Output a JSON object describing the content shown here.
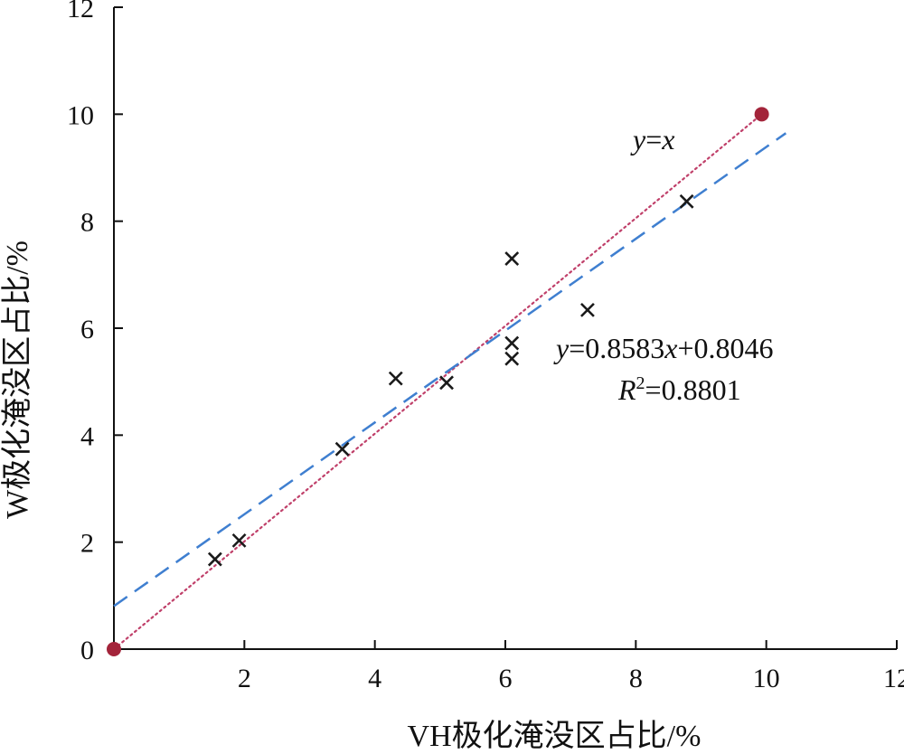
{
  "chart_data": {
    "type": "scatter",
    "xlabel": "VH极化淹没区占比/%",
    "ylabel": "W极化淹没区占比/%",
    "xlim": [
      0,
      12
    ],
    "ylim": [
      0,
      12
    ],
    "x_ticks": [
      "2",
      "4",
      "6",
      "8",
      "10",
      "12"
    ],
    "y_ticks": [
      "0",
      "2",
      "4",
      "6",
      "8",
      "10",
      "12"
    ],
    "grid": false,
    "series": [
      {
        "marker": "x",
        "color": "#1a1a1a",
        "points": [
          {
            "x": 1.55,
            "y": 1.68
          },
          {
            "x": 1.92,
            "y": 2.03
          },
          {
            "x": 3.5,
            "y": 3.74
          },
          {
            "x": 4.32,
            "y": 5.06
          },
          {
            "x": 5.1,
            "y": 4.98
          },
          {
            "x": 6.1,
            "y": 7.3
          },
          {
            "x": 6.1,
            "y": 5.72
          },
          {
            "x": 6.1,
            "y": 5.43
          },
          {
            "x": 7.26,
            "y": 6.34
          },
          {
            "x": 8.78,
            "y": 8.37
          }
        ]
      }
    ],
    "identity_line": {
      "label_italic": "y",
      "label_eq": "=",
      "label_x": "x",
      "color": "#c0406a",
      "style": "dotted",
      "endpoints": [
        {
          "x": 0,
          "y": 0
        },
        {
          "x": 9.93,
          "y": 10.0
        }
      ],
      "endpoint_color": "#a3243a"
    },
    "fit_line": {
      "slope": 0.8583,
      "intercept": 0.8046,
      "x_range": [
        0,
        10.3
      ],
      "color": "#3f7fd0",
      "style": "dashed",
      "equation_y": "y",
      "equation_rest": "=0.8583",
      "equation_x": "x",
      "equation_tail": "+0.8046",
      "r2_r": "R",
      "r2_sup": "2",
      "r2_value": "=0.8801"
    }
  }
}
